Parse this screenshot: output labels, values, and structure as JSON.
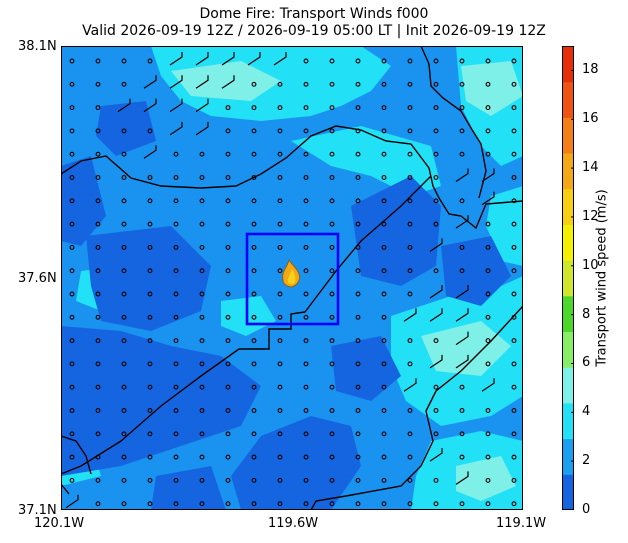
{
  "title": {
    "line1": "Dome Fire: Transport Winds f000",
    "line2": "Valid 2026-09-19 12Z / 2026-09-19 05:00 LT | Init 2026-09-19 12Z"
  },
  "axes": {
    "y_ticks": [
      "38.1N",
      "37.6N",
      "37.1N"
    ],
    "x_ticks": [
      "120.1W",
      "119.6W",
      "119.1W"
    ],
    "lat_range": [
      37.1,
      38.1
    ],
    "lon_range": [
      -120.1,
      -119.1
    ]
  },
  "colorbar": {
    "label": "Transport wind speed (m/s)",
    "ticks": [
      "0",
      "2",
      "4",
      "6",
      "8",
      "10",
      "12",
      "14",
      "16",
      "18"
    ],
    "range": [
      0,
      19
    ],
    "colors": [
      "#1565e0",
      "#1aa0f0",
      "#22e0f5",
      "#7ff0e8",
      "#88ee66",
      "#4cd82a",
      "#cfe62a",
      "#f5f000",
      "#f7cf12",
      "#f5a816",
      "#f57f17",
      "#ef5312",
      "#e62e0a"
    ]
  },
  "map": {
    "background_color": "#1a93f0",
    "fire_icon": "fire-icon",
    "highlight_box_color": "#0000ff",
    "boundary_color": "#000000"
  }
}
